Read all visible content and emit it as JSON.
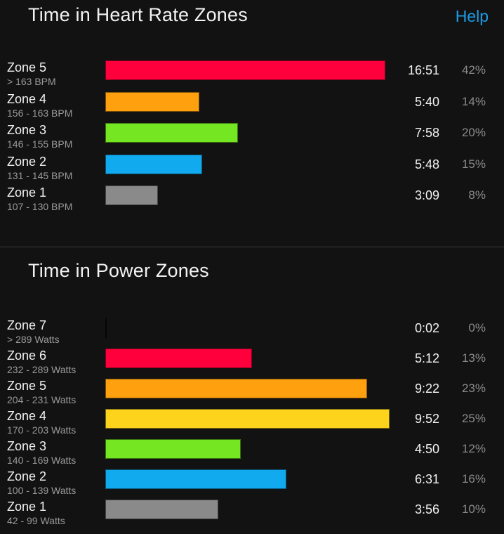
{
  "heart_rate": {
    "title": "Time in Heart Rate Zones",
    "help_label": "Help",
    "zones": [
      {
        "name": "Zone 5",
        "range": "> 163 BPM",
        "time": "16:51",
        "percent": "42%",
        "bar_fraction": 1.0,
        "color": "#ff003c"
      },
      {
        "name": "Zone 4",
        "range": "156 - 163 BPM",
        "time": "5:40",
        "percent": "14%",
        "bar_fraction": 0.337,
        "color": "#ffa00f"
      },
      {
        "name": "Zone 3",
        "range": "146 - 155 BPM",
        "time": "7:58",
        "percent": "20%",
        "bar_fraction": 0.473,
        "color": "#74e622"
      },
      {
        "name": "Zone 2",
        "range": "131 - 145 BPM",
        "time": "5:48",
        "percent": "15%",
        "bar_fraction": 0.345,
        "color": "#12aaee"
      },
      {
        "name": "Zone 1",
        "range": "107 - 130 BPM",
        "time": "3:09",
        "percent": "8%",
        "bar_fraction": 0.187,
        "color": "#8a8a8a"
      }
    ]
  },
  "power": {
    "title": "Time in Power Zones",
    "zones": [
      {
        "name": "Zone 7",
        "range": "> 289 Watts",
        "time": "0:02",
        "percent": "0%",
        "bar_fraction": 0.003,
        "color": "#e8e8e8"
      },
      {
        "name": "Zone 6",
        "range": "232 - 289 Watts",
        "time": "5:12",
        "percent": "13%",
        "bar_fraction": 0.517,
        "color": "#ff003c"
      },
      {
        "name": "Zone 5",
        "range": "204 - 231 Watts",
        "time": "9:22",
        "percent": "23%",
        "bar_fraction": 0.92,
        "color": "#ffa00f"
      },
      {
        "name": "Zone 4",
        "range": "170 - 203 Watts",
        "time": "9:52",
        "percent": "25%",
        "bar_fraction": 1.0,
        "color": "#fdd31c"
      },
      {
        "name": "Zone 3",
        "range": "140 - 169 Watts",
        "time": "4:50",
        "percent": "12%",
        "bar_fraction": 0.477,
        "color": "#74e622"
      },
      {
        "name": "Zone 2",
        "range": "100 - 139 Watts",
        "time": "6:31",
        "percent": "16%",
        "bar_fraction": 0.637,
        "color": "#12aaee"
      },
      {
        "name": "Zone 1",
        "range": "42 - 99 Watts",
        "time": "3:56",
        "percent": "10%",
        "bar_fraction": 0.397,
        "color": "#8a8a8a"
      }
    ]
  }
}
